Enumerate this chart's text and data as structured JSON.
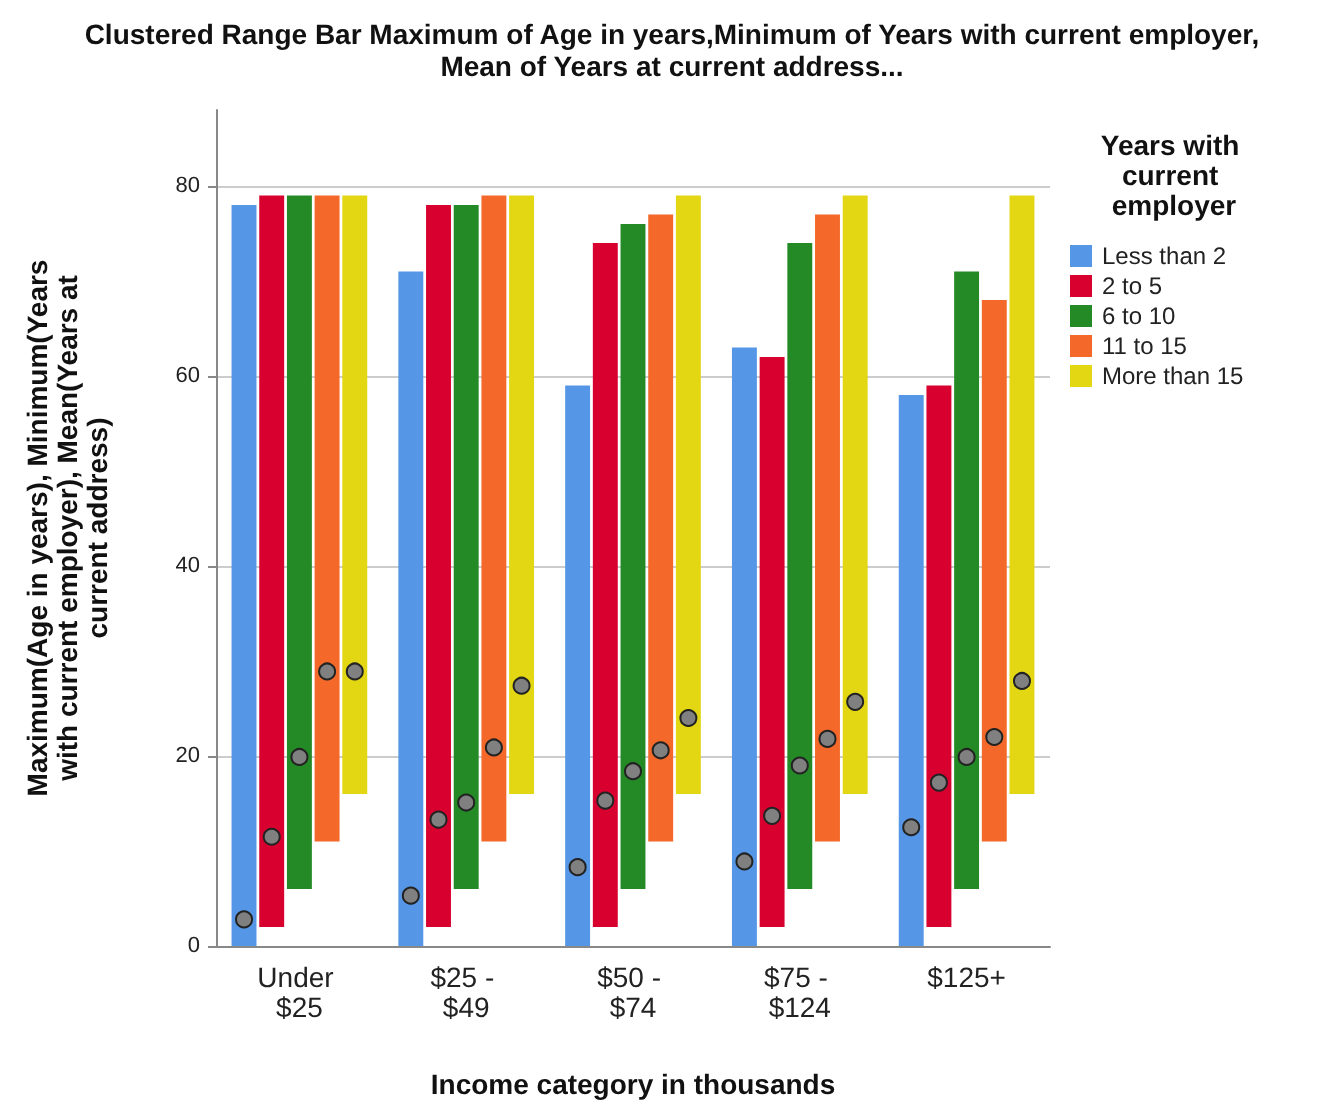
{
  "chart_data": {
    "type": "bar",
    "title": "Clustered Range Bar Maximum of Age in years,Minimum of Years with current employer,Mean of Years at current address...",
    "xlabel": "Income category in thousands",
    "ylabel": "Maximum(Age in years), Minimum(Years with current employer), Mean(Years at current address)",
    "legend_title": "Years with current employer",
    "categories": [
      "Under $25",
      "$25 - $49",
      "$50 - $74",
      "$75 - $124",
      "$125+"
    ],
    "series": [
      {
        "name": "Less than 2",
        "color": "#5596e6",
        "base": [
          0,
          0,
          0,
          0,
          0
        ],
        "values": [
          78,
          71,
          59,
          63,
          58
        ]
      },
      {
        "name": "2 to 5",
        "color": "#d8002f",
        "base": [
          2,
          2,
          2,
          2,
          2
        ],
        "values": [
          77,
          76,
          72,
          60,
          57
        ]
      },
      {
        "name": "6 to 10",
        "color": "#248a26",
        "base": [
          6,
          6,
          6,
          6,
          6
        ],
        "values": [
          73,
          72,
          70,
          68,
          65
        ]
      },
      {
        "name": "11 to 15",
        "color": "#f4692a",
        "base": [
          11,
          11,
          11,
          11,
          11
        ],
        "values": [
          68,
          68,
          66,
          66,
          57
        ]
      },
      {
        "name": "More than 15",
        "color": "#e2d712",
        "base": [
          16,
          16,
          16,
          16,
          16
        ],
        "values": [
          63,
          63,
          63,
          63,
          63
        ]
      },
      {
        "type": "scatter",
        "color": "#808080",
        "x": [
          "Under $25",
          "$25 - $49",
          "$50 - $74",
          "$75 - $124",
          "$125+"
        ],
        "values": [
          2.8,
          5.3,
          8.3,
          8.9,
          12.5
        ]
      },
      {
        "type": "scatter",
        "color": "#808080",
        "x": [
          "Under $25",
          "$25 - $49",
          "$50 - $74",
          "$75 - $124",
          "$125+"
        ],
        "values": [
          11.5,
          13.3,
          15.3,
          13.7,
          17.2
        ]
      },
      {
        "type": "scatter",
        "color": "#808080",
        "x": [
          "Under $25",
          "$25 - $49",
          "$50 - $74",
          "$75 - $124",
          "$125+"
        ],
        "values": [
          19.9,
          15.1,
          18.4,
          19.0,
          19.9
        ]
      },
      {
        "type": "scatter",
        "color": "#808080",
        "x": [
          "Under $25",
          "$25 - $49",
          "$50 - $74",
          "$75 - $124",
          "$125+"
        ],
        "values": [
          28.9,
          20.9,
          20.6,
          21.8,
          22.0
        ]
      },
      {
        "type": "scatter",
        "color": "#808080",
        "x": [
          "Under $25",
          "$25 - $49",
          "$50 - $74",
          "$75 - $124",
          "$125+"
        ],
        "values": [
          28.9,
          27.4,
          24.0,
          25.7,
          27.9
        ]
      }
    ],
    "ylim": [
      0,
      88
    ],
    "yticks": [
      0,
      20,
      40,
      60,
      80
    ],
    "grid": "y",
    "legend": "right",
    "marker": "circle"
  }
}
